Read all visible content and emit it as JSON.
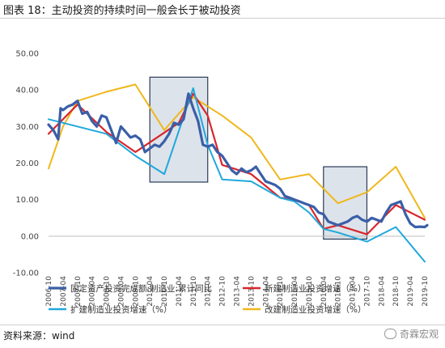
{
  "figure": {
    "title": "图表 18：主动投资的持续时间一般会长于被动投资",
    "source": "资料来源：wind",
    "watermark": "奇霖宏观"
  },
  "chart_data": {
    "type": "line",
    "title": "",
    "xlabel": "",
    "ylabel": "",
    "ylim": [
      -10,
      50
    ],
    "yticks": [
      "50.00",
      "40.00",
      "30.00",
      "20.00",
      "10.00",
      "0.00",
      "-10.00"
    ],
    "xlim": [
      "2006-10",
      "2019-10"
    ],
    "xticks": [
      "2006-10",
      "2007-04",
      "2007-10",
      "2008-04",
      "2008-10",
      "2009-04",
      "2009-10",
      "2010-04",
      "2010-10",
      "2011-04",
      "2011-10",
      "2012-04",
      "2012-10",
      "2013-04",
      "2013-10",
      "2014-04",
      "2014-10",
      "2015-04",
      "2015-10",
      "2016-04",
      "2016-10",
      "2017-04",
      "2017-10",
      "2018-04",
      "2018-10",
      "2019-04",
      "2019-10"
    ],
    "grid": false,
    "legend_position": "bottom",
    "shaded_periods": [
      [
        "2010-04",
        "2012-04"
      ],
      [
        "2016-04",
        "2017-10"
      ]
    ],
    "series": [
      {
        "name": "固定资产投资完成额:制造业:累计同比",
        "color": "#3a5fa8",
        "width": 3.2,
        "x": [
          "2006-10",
          "2006-12",
          "2007-02",
          "2007-03",
          "2007-04",
          "2007-06",
          "2007-08",
          "2007-10",
          "2007-12",
          "2008-02",
          "2008-04",
          "2008-06",
          "2008-08",
          "2008-10",
          "2008-12",
          "2009-02",
          "2009-04",
          "2009-06",
          "2009-08",
          "2009-10",
          "2009-12",
          "2010-02",
          "2010-04",
          "2010-06",
          "2010-08",
          "2010-10",
          "2010-12",
          "2011-02",
          "2011-04",
          "2011-06",
          "2011-08",
          "2011-10",
          "2011-12",
          "2012-02",
          "2012-04",
          "2012-06",
          "2012-08",
          "2012-10",
          "2012-12",
          "2013-02",
          "2013-04",
          "2013-06",
          "2013-08",
          "2013-10",
          "2013-12",
          "2014-02",
          "2014-04",
          "2014-06",
          "2014-08",
          "2014-10",
          "2014-12",
          "2015-02",
          "2015-04",
          "2015-06",
          "2015-08",
          "2015-10",
          "2015-12",
          "2016-02",
          "2016-04",
          "2016-06",
          "2016-08",
          "2016-10",
          "2016-12",
          "2017-02",
          "2017-04",
          "2017-06",
          "2017-08",
          "2017-10",
          "2017-12",
          "2018-02",
          "2018-04",
          "2018-06",
          "2018-08",
          "2018-10",
          "2018-12",
          "2019-02",
          "2019-04",
          "2019-06",
          "2019-08",
          "2019-10",
          "2019-11"
        ],
        "values": [
          30.5,
          29.0,
          26.5,
          35.0,
          34.5,
          35.5,
          36.0,
          37.0,
          33.5,
          34.0,
          31.5,
          30.0,
          33.0,
          32.5,
          29.0,
          25.5,
          30.0,
          28.5,
          27.0,
          27.5,
          26.5,
          23.0,
          24.0,
          25.0,
          24.5,
          26.0,
          28.0,
          31.0,
          30.5,
          32.0,
          39.0,
          35.0,
          31.5,
          25.0,
          24.5,
          25.0,
          23.0,
          22.0,
          20.0,
          18.0,
          17.0,
          18.5,
          17.5,
          18.0,
          19.0,
          17.0,
          15.0,
          14.5,
          14.0,
          13.0,
          11.0,
          10.5,
          10.0,
          9.5,
          9.0,
          8.5,
          8.0,
          6.5,
          6.0,
          4.0,
          3.5,
          3.0,
          3.5,
          4.0,
          5.0,
          5.5,
          4.5,
          4.0,
          5.0,
          4.5,
          4.0,
          6.5,
          8.5,
          9.0,
          9.5,
          6.0,
          3.5,
          2.5,
          2.6,
          2.5,
          3.0
        ]
      },
      {
        "name": "新建制造业投资增速（%）",
        "color": "#d9262c",
        "width": 2.2,
        "x": [
          "2006-10",
          "2007-10",
          "2008-10",
          "2009-10",
          "2011-04",
          "2011-10",
          "2012-04",
          "2012-10",
          "2013-10",
          "2014-10",
          "2015-04",
          "2015-10",
          "2016-04",
          "2016-10",
          "2017-10",
          "2018-10",
          "2019-04",
          "2019-10"
        ],
        "values": [
          28.0,
          36.0,
          28.5,
          23.0,
          31.0,
          39.0,
          33.0,
          19.5,
          17.0,
          10.5,
          10.0,
          8.5,
          2.0,
          3.0,
          0.5,
          8.5,
          6.5,
          4.5
        ]
      },
      {
        "name": "扩建制造业投资增速（%）",
        "color": "#1fa8dc",
        "width": 2.0,
        "x": [
          "2006-10",
          "2007-04",
          "2008-10",
          "2009-10",
          "2010-10",
          "2011-10",
          "2012-04",
          "2012-10",
          "2013-10",
          "2014-10",
          "2015-04",
          "2015-10",
          "2016-04",
          "2016-10",
          "2017-10",
          "2018-10",
          "2019-10"
        ],
        "values": [
          32.0,
          31.0,
          28.0,
          22.0,
          17.0,
          40.5,
          25.0,
          15.5,
          15.0,
          10.5,
          9.5,
          6.5,
          2.0,
          1.0,
          -1.5,
          2.5,
          -7.0
        ]
      },
      {
        "name": "改建制造业投资增速（%）",
        "color": "#f0b71c",
        "width": 2.0,
        "x": [
          "2006-10",
          "2007-04",
          "2007-10",
          "2008-10",
          "2009-10",
          "2010-10",
          "2011-10",
          "2012-10",
          "2013-10",
          "2014-10",
          "2015-10",
          "2016-10",
          "2017-10",
          "2018-10",
          "2019-10"
        ],
        "values": [
          18.5,
          30.0,
          37.0,
          39.5,
          41.5,
          29.0,
          38.0,
          33.0,
          27.0,
          15.5,
          17.0,
          9.0,
          12.0,
          19.0,
          5.0
        ]
      }
    ]
  }
}
